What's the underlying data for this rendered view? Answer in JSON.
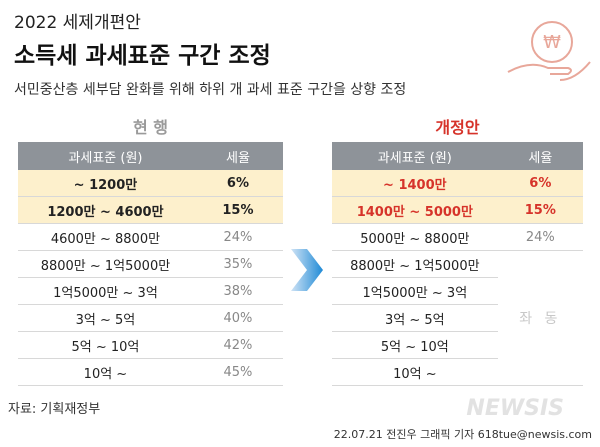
{
  "header": {
    "year_title": "2022 세제개편안",
    "title": "소득세 과세표준 구간 조정",
    "subtitle": "서민중산층 세부담 완화를 위해 하위 개 과세 표준 구간을 상향 조정"
  },
  "current": {
    "label": "현 행",
    "columns": [
      "과세표준 (원)",
      "세율"
    ],
    "rows": [
      [
        "~ 1200만",
        "6%"
      ],
      [
        "1200만 ~ 4600만",
        "15%"
      ],
      [
        "4600만 ~ 8800만",
        "24%"
      ],
      [
        "8800만 ~ 1억5000만",
        "35%"
      ],
      [
        "1억5000만 ~ 3억",
        "38%"
      ],
      [
        "3억 ~ 5억",
        "40%"
      ],
      [
        "5억 ~ 10억",
        "42%"
      ],
      [
        "10억 ~",
        "45%"
      ]
    ]
  },
  "revised": {
    "label": "개정안",
    "columns": [
      "과세표준 (원)",
      "세율"
    ],
    "rows": [
      [
        "~ 1400만",
        "6%"
      ],
      [
        "1400만 ~ 5000만",
        "15%"
      ],
      [
        "5000만 ~ 8800만",
        "24%"
      ],
      [
        "8800만 ~ 1억5000만"
      ],
      [
        "1억5000만 ~ 3억"
      ],
      [
        "3억 ~ 5억"
      ],
      [
        "5억 ~ 10억"
      ],
      [
        "10억 ~"
      ]
    ],
    "same_note": "좌 동"
  },
  "footer": {
    "source": "자료: 기획재정부",
    "credit": "22.07.21 전진우 그래픽 기자 618tue@newsis.com",
    "watermark": "NEWSIS"
  }
}
